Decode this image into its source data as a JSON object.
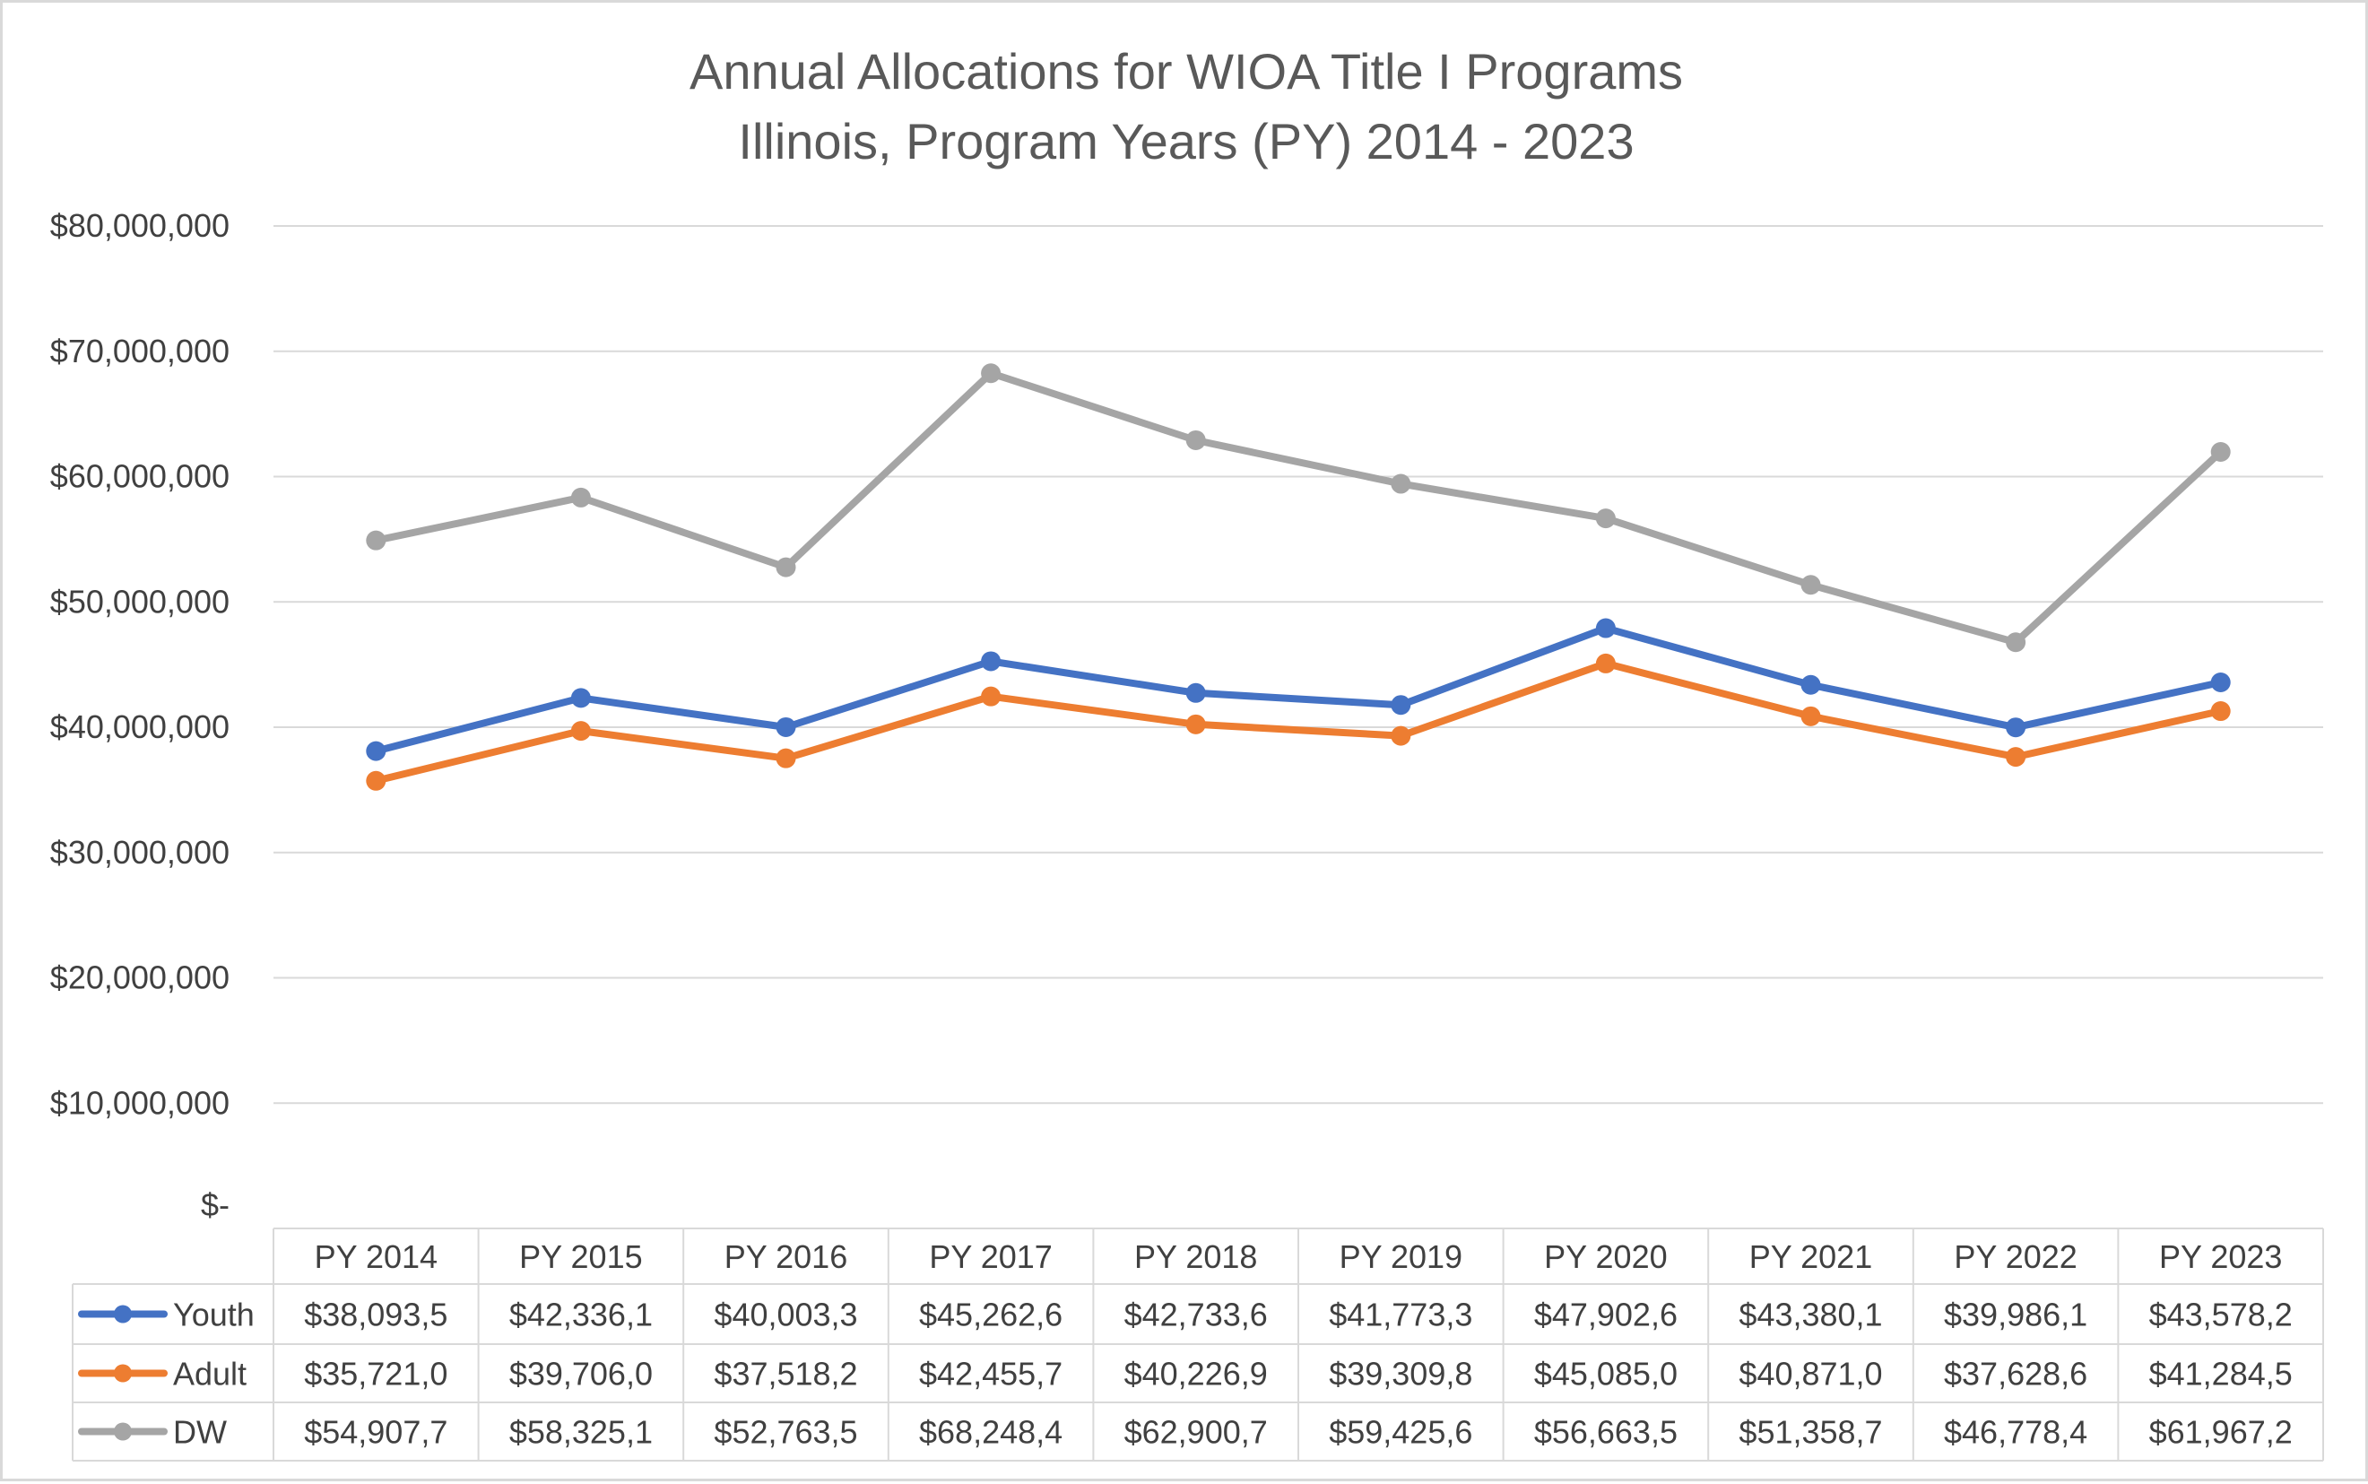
{
  "chart_data": {
    "type": "line",
    "title": "Annual Allocations for WIOA Title I Programs",
    "subtitle": "Illinois, Program Years (PY) 2014 - 2023",
    "xlabel": "",
    "ylabel": "",
    "categories": [
      "PY 2014",
      "PY 2015",
      "PY 2016",
      "PY 2017",
      "PY 2018",
      "PY 2019",
      "PY 2020",
      "PY 2021",
      "PY 2022",
      "PY 2023"
    ],
    "ylim": [
      0,
      80000000
    ],
    "y_ticks": [
      0,
      10000000,
      20000000,
      30000000,
      40000000,
      50000000,
      60000000,
      70000000,
      80000000
    ],
    "y_tick_labels": [
      "$-",
      "$10,000,000",
      "$20,000,000",
      "$30,000,000",
      "$40,000,000",
      "$50,000,000",
      "$60,000,000",
      "$70,000,000",
      "$80,000,000"
    ],
    "grid": true,
    "legend": "data-table",
    "series": [
      {
        "name": "Youth",
        "color": "#4472C4",
        "values": [
          38093500,
          42336100,
          40003300,
          45262600,
          42733600,
          41773300,
          47902600,
          43380100,
          39986100,
          43578200
        ],
        "table_labels": [
          "$38,093,5",
          "$42,336,1",
          "$40,003,3",
          "$45,262,6",
          "$42,733,6",
          "$41,773,3",
          "$47,902,6",
          "$43,380,1",
          "$39,986,1",
          "$43,578,2"
        ]
      },
      {
        "name": "Adult",
        "color": "#ED7D31",
        "values": [
          35721000,
          39706000,
          37518200,
          42455700,
          40226900,
          39309800,
          45085000,
          40871000,
          37628600,
          41284500
        ],
        "table_labels": [
          "$35,721,0",
          "$39,706,0",
          "$37,518,2",
          "$42,455,7",
          "$40,226,9",
          "$39,309,8",
          "$45,085,0",
          "$40,871,0",
          "$37,628,6",
          "$41,284,5"
        ]
      },
      {
        "name": "DW",
        "color": "#A5A5A5",
        "values": [
          54907700,
          58325100,
          52763500,
          68248400,
          62900700,
          59425600,
          56663500,
          51358700,
          46778400,
          61967200
        ],
        "table_labels": [
          "$54,907,7",
          "$58,325,1",
          "$52,763,5",
          "$68,248,4",
          "$62,900,7",
          "$59,425,6",
          "$56,663,5",
          "$51,358,7",
          "$46,778,4",
          "$61,967,2"
        ]
      }
    ]
  }
}
